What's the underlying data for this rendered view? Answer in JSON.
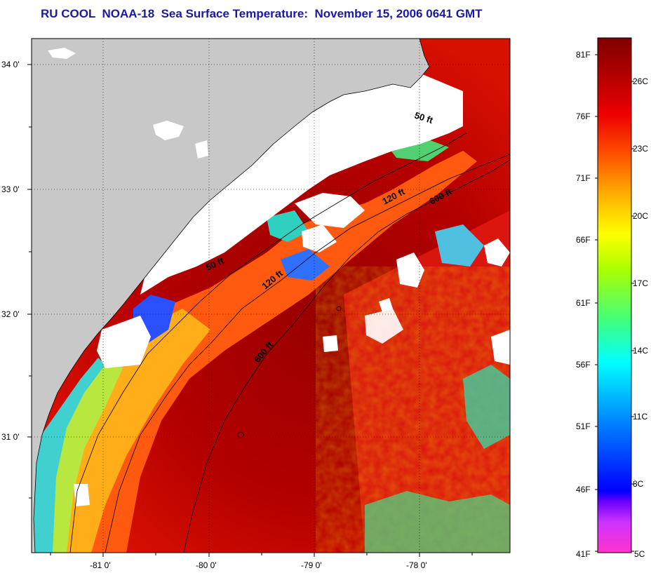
{
  "title": "RU COOL  NOAA-18  Sea Surface Temperature:  November 15, 2006 0641 GMT",
  "map": {
    "lat_labels": [
      "34 0'",
      "33 0'",
      "32 0'",
      "31 0'"
    ],
    "lon_labels": [
      "-81 0'",
      "-80 0'",
      "-79 0'",
      "-78 0'"
    ],
    "isobath_labels": [
      {
        "text": "50 ft"
      },
      {
        "text": "50 ft"
      },
      {
        "text": "120 ft"
      },
      {
        "text": "120 ft"
      },
      {
        "text": "600 ft"
      },
      {
        "text": "600 ft"
      }
    ],
    "colors": {
      "land": "#c8c8c8",
      "cloud": "#ffffff",
      "warm": "#a00000",
      "red": "#e01010",
      "orange": "#ff6a00",
      "yellow": "#ffd000",
      "green": "#4ccf4c",
      "cyan": "#00e0e0",
      "blue": "#1a40ff"
    }
  },
  "colorbar": {
    "f_labels": [
      "81F",
      "76F",
      "71F",
      "66F",
      "61F",
      "56F",
      "51F",
      "46F",
      "41F"
    ],
    "c_labels": [
      "26C",
      "23C",
      "20C",
      "17C",
      "14C",
      "11C",
      "8C",
      "5C"
    ],
    "stops": [
      "#ff33cc",
      "#cc33ff",
      "#0000ff",
      "#0066ff",
      "#00ccff",
      "#00ffcc",
      "#33ee33",
      "#aaff00",
      "#ffff00",
      "#ffcc00",
      "#ff8800",
      "#ff3300",
      "#dd0000",
      "#880000"
    ]
  }
}
